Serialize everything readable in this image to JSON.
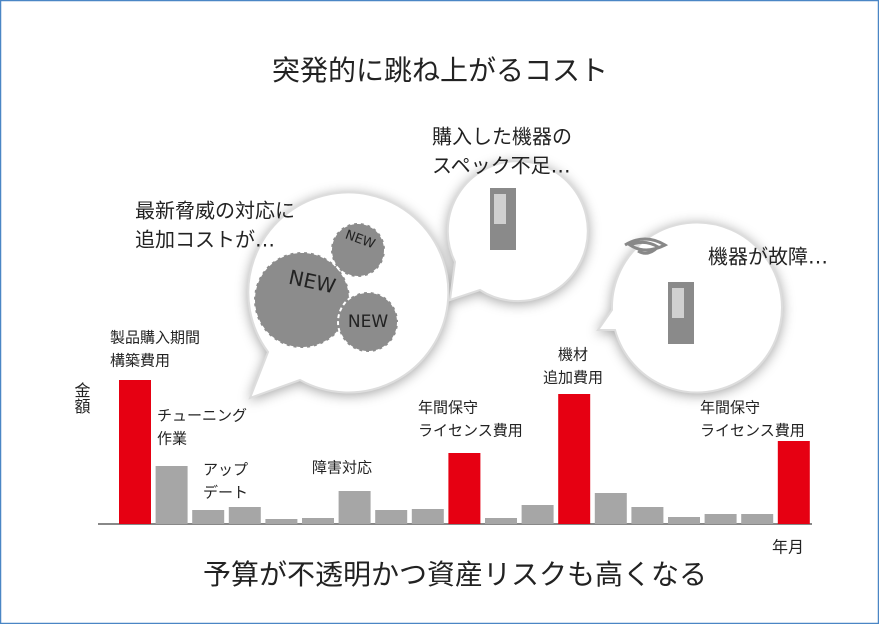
{
  "chart_data": {
    "type": "bar",
    "title": "突発的に跳ね上がるコスト",
    "footer": "予算が不透明かつ資産リスクも高くなる",
    "y_label": "金額",
    "x_label": "年月",
    "values": [
      144,
      58,
      14,
      17,
      5,
      6,
      33,
      14,
      15,
      71,
      6,
      19,
      130,
      31,
      17,
      7,
      10,
      10,
      83
    ],
    "colors": [
      "#e60012",
      "#a6a6a6",
      "#a6a6a6",
      "#a6a6a6",
      "#a6a6a6",
      "#a6a6a6",
      "#a6a6a6",
      "#a6a6a6",
      "#a6a6a6",
      "#e60012",
      "#a6a6a6",
      "#a6a6a6",
      "#e60012",
      "#a6a6a6",
      "#a6a6a6",
      "#a6a6a6",
      "#a6a6a6",
      "#a6a6a6",
      "#e60012"
    ],
    "ylim": [
      0,
      150
    ],
    "annotations": [
      {
        "lines": [
          "製品購入期間",
          "構築費用"
        ]
      },
      {
        "lines": [
          "チューニング",
          "作業"
        ]
      },
      {
        "lines": [
          "アップ",
          "デート"
        ]
      },
      {
        "lines": [
          "障害対応"
        ]
      },
      {
        "lines": [
          "年間保守",
          "ライセンス費用"
        ]
      },
      {
        "lines": [
          "機材",
          "追加費用"
        ]
      },
      {
        "lines": [
          "年間保守",
          "ライセンス費用"
        ]
      }
    ],
    "callouts": [
      {
        "lines": [
          "最新脅威の対応に",
          "追加コストが…"
        ]
      },
      {
        "lines": [
          "購入した機器の",
          "スペック不足…"
        ]
      },
      {
        "lines": [
          "機器が故障…"
        ]
      }
    ],
    "badges": [
      "NEW",
      "NEW",
      "NEW"
    ]
  }
}
